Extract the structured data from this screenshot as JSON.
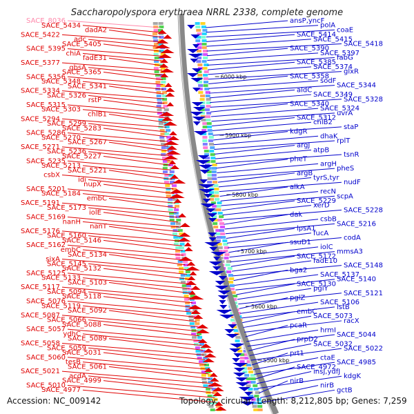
{
  "title": "Saccharopolyspora erythraea NRRL 2338, complete genome",
  "footer": {
    "accession": "Accession: NC_009142",
    "topology": "Topology: circular; Length: 8,212,805 bp; Genes: 7,259"
  },
  "colors": {
    "forward_strand": "#0000cc",
    "reverse_strand": "#e00000",
    "highlight": "#ff88aa",
    "backbone": "#888888"
  },
  "ticks": [
    "6000 kbp",
    "5900 kbp",
    "5800 kbp",
    "5700 kbp",
    "5600 kbp",
    "5500 kbp"
  ],
  "left_labels": [
    {
      "text": "SACE_8036",
      "style": "highlight"
    },
    {
      "text": "SACE_5434"
    },
    {
      "text": "dadA2"
    },
    {
      "text": "SACE_5422"
    },
    {
      "text": "adc"
    },
    {
      "text": "SACE_5405"
    },
    {
      "text": "SACE_5395"
    },
    {
      "text": "chiA"
    },
    {
      "text": "fadE31"
    },
    {
      "text": "SACE_5377"
    },
    {
      "text": "gbsA"
    },
    {
      "text": "SACE_5365"
    },
    {
      "text": "SACE_5356"
    },
    {
      "text": "SACE_5348"
    },
    {
      "text": "SACE_5341"
    },
    {
      "text": "SACE_5334"
    },
    {
      "text": "SACE_5326"
    },
    {
      "text": "rstP"
    },
    {
      "text": "SACE_5315"
    },
    {
      "text": "SACE_5303"
    },
    {
      "text": "chlB1"
    },
    {
      "text": "SACE_5294"
    },
    {
      "text": "SACE_5299"
    },
    {
      "text": "SACE_5283"
    },
    {
      "text": "SACE_5286"
    },
    {
      "text": "SACE_5270"
    },
    {
      "text": "SACE_5267"
    },
    {
      "text": "SACE_5271"
    },
    {
      "text": "SACE_5236"
    },
    {
      "text": "SACE_5227"
    },
    {
      "text": "SACE_5235"
    },
    {
      "text": "SACE_5213"
    },
    {
      "text": "SACE_5221"
    },
    {
      "text": "csbX"
    },
    {
      "text": "idi"
    },
    {
      "text": "nupX"
    },
    {
      "text": "SACE_5201"
    },
    {
      "text": "SACE_5184"
    },
    {
      "text": "embC"
    },
    {
      "text": "SACE_5191"
    },
    {
      "text": "SACE_5173"
    },
    {
      "text": "iolE"
    },
    {
      "text": "SACE_5169"
    },
    {
      "text": "nanH"
    },
    {
      "text": "nanT"
    },
    {
      "text": "SACE_5176"
    },
    {
      "text": "SACE_5160"
    },
    {
      "text": "SACE_5146"
    },
    {
      "text": "SACE_5162"
    },
    {
      "text": "embC"
    },
    {
      "text": "SACE_5134"
    },
    {
      "text": "sixA"
    },
    {
      "text": "SACE_5145"
    },
    {
      "text": "SACE_5132"
    },
    {
      "text": "SACE_5125"
    },
    {
      "text": "SACE_5133"
    },
    {
      "text": "SACE_5103"
    },
    {
      "text": "SACE_5117"
    },
    {
      "text": "SACE_5094"
    },
    {
      "text": "SACE_5118"
    },
    {
      "text": "SACE_5076"
    },
    {
      "text": "SACE_5119"
    },
    {
      "text": "SACE_5092"
    },
    {
      "text": "SACE_5087"
    },
    {
      "text": "SACE_5066"
    },
    {
      "text": "SACE_5088"
    },
    {
      "text": "SACE_5057"
    },
    {
      "text": "ydhC"
    },
    {
      "text": "SACE_5089"
    },
    {
      "text": "SACE_5058"
    },
    {
      "text": "SACE_5059"
    },
    {
      "text": "SACE_5031"
    },
    {
      "text": "SACE_5060"
    },
    {
      "text": "tesB"
    },
    {
      "text": "SACE_5061"
    },
    {
      "text": "SACE_5021"
    },
    {
      "text": "acdA"
    },
    {
      "text": "SACE_4999"
    },
    {
      "text": "SACE_5010"
    },
    {
      "text": "SACE_4977"
    }
  ],
  "right_labels": [
    {
      "text": "ansP,yncF"
    },
    {
      "text": "polA"
    },
    {
      "text": "coaE"
    },
    {
      "text": "SACE_5414"
    },
    {
      "text": "SACE_5415"
    },
    {
      "text": "SACE_5418"
    },
    {
      "text": "SACE_5390"
    },
    {
      "text": "SACE_5397"
    },
    {
      "text": "fabG"
    },
    {
      "text": "SACE_5385"
    },
    {
      "text": "SACE_5374"
    },
    {
      "text": "glxR"
    },
    {
      "text": "SACE_5358"
    },
    {
      "text": "sodF"
    },
    {
      "text": "SACE_5344"
    },
    {
      "text": "aldC"
    },
    {
      "text": "SACE_5349"
    },
    {
      "text": "SACE_5328"
    },
    {
      "text": "SACE_5340"
    },
    {
      "text": "SACE_5324"
    },
    {
      "text": "uvrA"
    },
    {
      "text": "SACE_5312"
    },
    {
      "text": "chlB2"
    },
    {
      "text": "staP"
    },
    {
      "text": "kdgR"
    },
    {
      "text": "dhaK"
    },
    {
      "text": "rplT"
    },
    {
      "text": "argJ"
    },
    {
      "text": "atpB"
    },
    {
      "text": "tsnR"
    },
    {
      "text": "pheT"
    },
    {
      "text": "argH"
    },
    {
      "text": "pheS"
    },
    {
      "text": "argB"
    },
    {
      "text": "tyrS,tyr"
    },
    {
      "text": "nudF"
    },
    {
      "text": "alkA"
    },
    {
      "text": "recN"
    },
    {
      "text": "scpA"
    },
    {
      "text": "SACE_5229"
    },
    {
      "text": "xerD"
    },
    {
      "text": "SACE_5228"
    },
    {
      "text": "dak"
    },
    {
      "text": "csbB"
    },
    {
      "text": "SACE_5216"
    },
    {
      "text": "lpsA1"
    },
    {
      "text": "fucA"
    },
    {
      "text": "codA"
    },
    {
      "text": "ssuD1"
    },
    {
      "text": "iolC"
    },
    {
      "text": "mmsA3"
    },
    {
      "text": "SACE_5172"
    },
    {
      "text": "fadE10"
    },
    {
      "text": "SACE_5148"
    },
    {
      "text": "bga2"
    },
    {
      "text": "SACE_5137"
    },
    {
      "text": "SACE_5140"
    },
    {
      "text": "SACE_5130"
    },
    {
      "text": "pglY"
    },
    {
      "text": "SACE_5121"
    },
    {
      "text": "pglZ"
    },
    {
      "text": "SACE_5106"
    },
    {
      "text": "lstB"
    },
    {
      "text": "embC"
    },
    {
      "text": "SACE_5073"
    },
    {
      "text": "racX"
    },
    {
      "text": "pcaR"
    },
    {
      "text": "hrmI"
    },
    {
      "text": "SACE_5044"
    },
    {
      "text": "prpD2"
    },
    {
      "text": "SACE_5032"
    },
    {
      "text": "SACE_5022"
    },
    {
      "text": "prt1"
    },
    {
      "text": "ctaE"
    },
    {
      "text": "SACE_4985"
    },
    {
      "text": "SACE_4972"
    },
    {
      "text": "insJ,ydfJ"
    },
    {
      "text": "kdgK"
    },
    {
      "text": "nirB"
    },
    {
      "text": "nirB"
    },
    {
      "text": "gctB"
    }
  ]
}
